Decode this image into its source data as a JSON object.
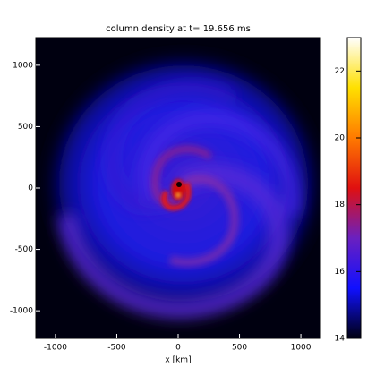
{
  "chart_data": {
    "type": "heatmap",
    "title": "column density at t= 19.656 ms",
    "xlabel": "x [km]",
    "xlim": [
      -1160,
      1160
    ],
    "ylim": [
      -1225,
      1225
    ],
    "xticks": [
      -1000,
      -500,
      0,
      500,
      1000
    ],
    "yticks": [
      -1000,
      -500,
      0,
      500,
      1000
    ],
    "colorbar": {
      "lim": [
        14,
        23
      ],
      "ticks": [
        14,
        16,
        18,
        20,
        22
      ],
      "colormap": [
        "#000010",
        "#1010ff",
        "#6a20c0",
        "#e01010",
        "#ff7a00",
        "#ffe000",
        "#ffffff"
      ]
    }
  }
}
